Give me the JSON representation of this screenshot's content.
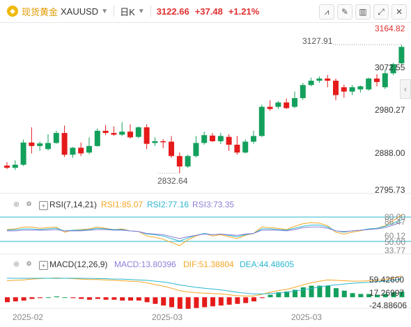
{
  "header": {
    "name": "现货黄金",
    "symbol": "XAUUSD",
    "timeframe": "日K",
    "price": "3122.66",
    "change": "+37.48",
    "change_pct": "+1.21%",
    "tools": [
      "indicator-icon",
      "draw-icon",
      "chart-type-icon",
      "expand-icon",
      "close-icon"
    ]
  },
  "price_axis": [
    "3164.82",
    "3072.55",
    "2980.27",
    "2888.00",
    "2795.73"
  ],
  "annotations": {
    "high": "3127.91",
    "low": "2832.64"
  },
  "rsi": {
    "title": "RSI(7,14,21)",
    "rsi1": "RSI1:85.07",
    "rsi2": "RSI2:77.16",
    "rsi3": "RSI3:73.35",
    "axis": [
      "80.00",
      "86.47",
      "60.12",
      "50.00",
      "33.77"
    ]
  },
  "macd": {
    "title": "MACD(12,26,9)",
    "macd": "MACD:13.80396",
    "dif": "DIF:51.38804",
    "dea": "DEA:44.48605",
    "axis": [
      "59.42600",
      "17.26997",
      "-24.88606"
    ]
  },
  "date_axis": [
    "2025-02",
    "2025-03",
    "2025-03"
  ],
  "colors": {
    "up": "#13a05c",
    "down": "#e51b1b",
    "rsi1": "#f5a623",
    "rsi2": "#29b6cf",
    "rsi3": "#8d7ed8",
    "dif": "#f5a623",
    "dea": "#29b6cf"
  },
  "chart_data": {
    "type": "candlestick",
    "price_range": [
      2795.73,
      3164.82
    ],
    "candles": [
      {
        "o": 2850,
        "h": 2858,
        "c": 2845,
        "l": 2842
      },
      {
        "o": 2845,
        "h": 2862,
        "c": 2852,
        "l": 2840
      },
      {
        "o": 2852,
        "h": 2910,
        "c": 2903,
        "l": 2849
      },
      {
        "o": 2903,
        "h": 2938,
        "c": 2895,
        "l": 2878
      },
      {
        "o": 2895,
        "h": 2905,
        "c": 2901,
        "l": 2884
      },
      {
        "o": 2888,
        "h": 2922,
        "c": 2902,
        "l": 2885
      },
      {
        "o": 2902,
        "h": 2930,
        "c": 2925,
        "l": 2900
      },
      {
        "o": 2925,
        "h": 2942,
        "c": 2875,
        "l": 2870
      },
      {
        "o": 2875,
        "h": 2893,
        "c": 2891,
        "l": 2868
      },
      {
        "o": 2891,
        "h": 2903,
        "c": 2878,
        "l": 2872
      },
      {
        "o": 2880,
        "h": 2915,
        "c": 2895,
        "l": 2876
      },
      {
        "o": 2895,
        "h": 2935,
        "c": 2930,
        "l": 2893
      },
      {
        "o": 2930,
        "h": 2943,
        "c": 2925,
        "l": 2920
      },
      {
        "o": 2925,
        "h": 2940,
        "c": 2921,
        "l": 2918
      },
      {
        "o": 2921,
        "h": 2950,
        "c": 2928,
        "l": 2918
      },
      {
        "o": 2928,
        "h": 2945,
        "c": 2915,
        "l": 2912
      },
      {
        "o": 2916,
        "h": 2940,
        "c": 2938,
        "l": 2913
      },
      {
        "o": 2938,
        "h": 2945,
        "c": 2900,
        "l": 2888
      },
      {
        "o": 2902,
        "h": 2915,
        "c": 2906,
        "l": 2895
      },
      {
        "o": 2906,
        "h": 2911,
        "c": 2905,
        "l": 2890
      },
      {
        "o": 2905,
        "h": 2918,
        "c": 2872,
        "l": 2868
      },
      {
        "o": 2872,
        "h": 2880,
        "c": 2848,
        "l": 2832.64
      },
      {
        "o": 2848,
        "h": 2875,
        "c": 2872,
        "l": 2845
      },
      {
        "o": 2872,
        "h": 2918,
        "c": 2902,
        "l": 2869
      },
      {
        "o": 2902,
        "h": 2928,
        "c": 2920,
        "l": 2898
      },
      {
        "o": 2919,
        "h": 2925,
        "c": 2906,
        "l": 2904
      },
      {
        "o": 2906,
        "h": 2925,
        "c": 2918,
        "l": 2900
      },
      {
        "o": 2916,
        "h": 2922,
        "c": 2898,
        "l": 2884
      },
      {
        "o": 2898,
        "h": 2918,
        "c": 2880,
        "l": 2875
      },
      {
        "o": 2880,
        "h": 2910,
        "c": 2905,
        "l": 2878
      },
      {
        "o": 2905,
        "h": 2930,
        "c": 2918,
        "l": 2900
      },
      {
        "o": 2918,
        "h": 2990,
        "c": 2985,
        "l": 2916
      },
      {
        "o": 2985,
        "h": 3000,
        "c": 2980,
        "l": 2976
      },
      {
        "o": 2985,
        "h": 2998,
        "c": 2995,
        "l": 2980
      },
      {
        "o": 2995,
        "h": 3004,
        "c": 2982,
        "l": 2980
      },
      {
        "o": 2985,
        "h": 3020,
        "c": 3005,
        "l": 2982
      },
      {
        "o": 3005,
        "h": 3040,
        "c": 3035,
        "l": 3001
      },
      {
        "o": 3035,
        "h": 3052,
        "c": 3045,
        "l": 3032
      },
      {
        "o": 3045,
        "h": 3055,
        "c": 3050,
        "l": 3040
      },
      {
        "o": 3050,
        "h": 3058,
        "c": 3045,
        "l": 3030
      },
      {
        "o": 3045,
        "h": 3050,
        "c": 3012,
        "l": 3000
      },
      {
        "o": 3030,
        "h": 3036,
        "c": 3020,
        "l": 3006
      },
      {
        "o": 3020,
        "h": 3035,
        "c": 3030,
        "l": 3012
      },
      {
        "o": 3025,
        "h": 3034,
        "c": 3032,
        "l": 3018
      },
      {
        "o": 3025,
        "h": 3052,
        "c": 3050,
        "l": 3022
      },
      {
        "o": 3050,
        "h": 3060,
        "c": 3042,
        "l": 3032
      },
      {
        "o": 3030,
        "h": 3070,
        "c": 3062,
        "l": 3026
      },
      {
        "o": 3062,
        "h": 3086,
        "c": 3083,
        "l": 3058
      },
      {
        "o": 3085,
        "h": 3127.91,
        "c": 3122.66,
        "l": 3080
      }
    ],
    "rsi_range": [
      33.77,
      88.0
    ],
    "rsi1": [
      62,
      63,
      66,
      66,
      64,
      65,
      66,
      58,
      61,
      62,
      63,
      66,
      64,
      62,
      63,
      60,
      59,
      52,
      50,
      47,
      42,
      37,
      46,
      52,
      56,
      52,
      54,
      51,
      48,
      53,
      56,
      66,
      65,
      64,
      62,
      67,
      71,
      73,
      72,
      68,
      58,
      55,
      58,
      60,
      63,
      64,
      68,
      76,
      85.07
    ],
    "rsi2": [
      61,
      62,
      63,
      63,
      62,
      63,
      64,
      60,
      61,
      61,
      62,
      64,
      63,
      62,
      62,
      60,
      59,
      55,
      54,
      52,
      48,
      44,
      49,
      53,
      56,
      54,
      55,
      53,
      51,
      54,
      56,
      63,
      63,
      62,
      61,
      64,
      67,
      69,
      69,
      66,
      60,
      58,
      60,
      61,
      63,
      64,
      67,
      72,
      77.16
    ],
    "rsi3": [
      60,
      60,
      61,
      61,
      61,
      61,
      62,
      60,
      60,
      60,
      61,
      62,
      62,
      61,
      61,
      60,
      59,
      56,
      55,
      54,
      51,
      48,
      51,
      53,
      55,
      54,
      55,
      54,
      53,
      55,
      56,
      61,
      61,
      61,
      60,
      62,
      65,
      66,
      66,
      64,
      60,
      59,
      60,
      61,
      62,
      63,
      65,
      69,
      73.35
    ],
    "macd_range": [
      -24.88606,
      59.426
    ],
    "dif": [
      40,
      41,
      42,
      44,
      45,
      46,
      47,
      46,
      45,
      44,
      43,
      43,
      42,
      41,
      40,
      39,
      38,
      35,
      31,
      27,
      22,
      16,
      13,
      11,
      10,
      9,
      8,
      6,
      4,
      3,
      3,
      7,
      12,
      16,
      19,
      24,
      30,
      35,
      39,
      42,
      41,
      40,
      39,
      39,
      40,
      41,
      43,
      47,
      51.38804
    ],
    "dea": [
      46,
      46,
      46,
      46,
      46,
      46,
      46,
      46,
      46,
      46,
      46,
      45,
      45,
      44,
      44,
      43,
      42,
      41,
      39,
      37,
      34,
      30,
      27,
      24,
      22,
      20,
      18,
      15,
      12,
      10,
      8,
      8,
      9,
      10,
      12,
      15,
      18,
      21,
      25,
      28,
      30,
      32,
      34,
      35,
      36,
      38,
      39,
      41,
      44.48605
    ],
    "macd": [
      -12,
      -10,
      -8,
      -4,
      -2,
      0,
      2,
      0,
      -2,
      -4,
      -6,
      -4,
      -6,
      -6,
      -8,
      -8,
      -8,
      -12,
      -16,
      -20,
      -24,
      -28,
      -28,
      -26,
      -24,
      -22,
      -20,
      -18,
      -16,
      -14,
      -10,
      -2,
      6,
      12,
      14,
      18,
      24,
      28,
      28,
      28,
      22,
      16,
      10,
      8,
      8,
      6,
      8,
      12,
      13.80396
    ]
  }
}
